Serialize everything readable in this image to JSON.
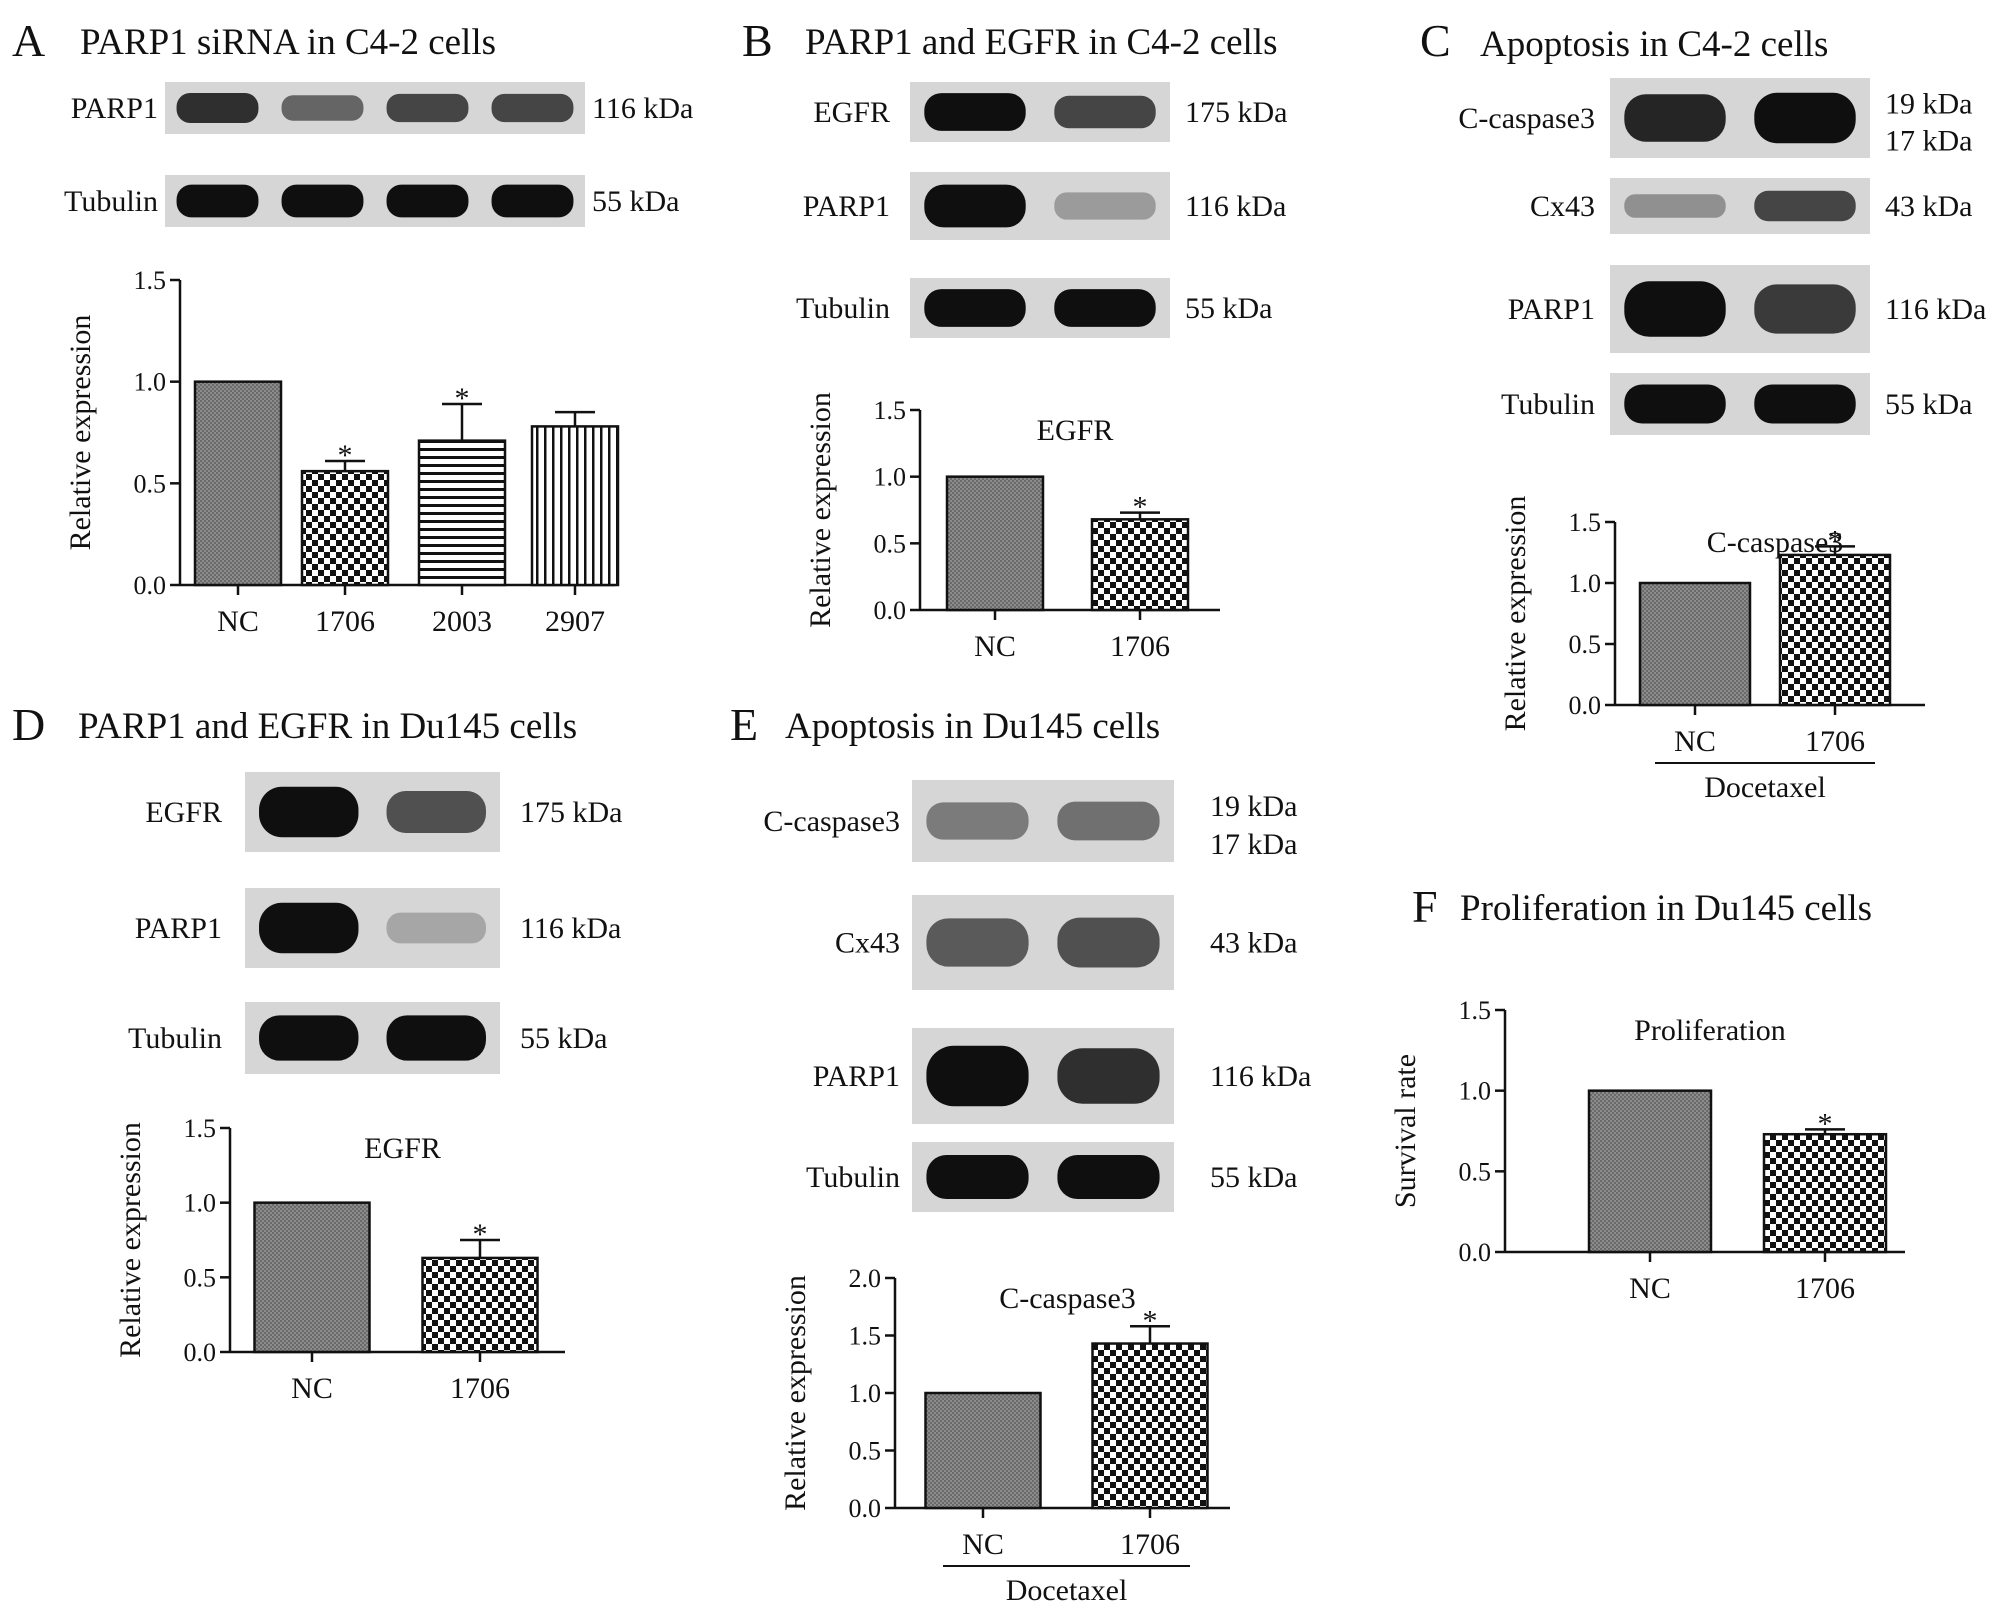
{
  "panels": {
    "A": {
      "letter": "A",
      "title": "PARP1 siRNA in C4-2 cells",
      "blots": [
        {
          "label": "PARP1",
          "size": "116 kDa",
          "lanes": 4,
          "intensity": [
            0.85,
            0.6,
            0.75,
            0.75
          ]
        },
        {
          "label": "Tubulin",
          "size": "55 kDa",
          "lanes": 4,
          "intensity": [
            1,
            1,
            1,
            1
          ]
        }
      ]
    },
    "B": {
      "letter": "B",
      "title": "PARP1 and EGFR  in  C4-2 cells",
      "blots": [
        {
          "label": "EGFR",
          "size": "175 kDa",
          "lanes": 2,
          "intensity": [
            1,
            0.75
          ]
        },
        {
          "label": "PARP1",
          "size": "116 kDa",
          "lanes": 2,
          "intensity": [
            1,
            0.35
          ]
        },
        {
          "label": "Tubulin",
          "size": "55 kDa",
          "lanes": 2,
          "intensity": [
            1,
            1
          ]
        }
      ]
    },
    "C": {
      "letter": "C",
      "title": "Apoptosis in C4-2 cells",
      "blots": [
        {
          "label": "C-caspase3",
          "size": "19 kDa",
          "size2": "17 kDa",
          "lanes": 2,
          "intensity": [
            0.9,
            1
          ]
        },
        {
          "label": "Cx43",
          "size": "43 kDa",
          "lanes": 2,
          "intensity": [
            0.4,
            0.75
          ]
        },
        {
          "label": "PARP1",
          "size": "116 kDa",
          "lanes": 2,
          "intensity": [
            1,
            0.8
          ]
        },
        {
          "label": "Tubulin",
          "size": "55 kDa",
          "lanes": 2,
          "intensity": [
            1,
            1
          ]
        }
      ]
    },
    "D": {
      "letter": "D",
      "title": "PARP1 and EGFR in Du145 cells",
      "blots": [
        {
          "label": "EGFR",
          "size": "175 kDa",
          "lanes": 2,
          "intensity": [
            1,
            0.7
          ]
        },
        {
          "label": "PARP1",
          "size": "116 kDa",
          "lanes": 2,
          "intensity": [
            1,
            0.3
          ]
        },
        {
          "label": "Tubulin",
          "size": "55 kDa",
          "lanes": 2,
          "intensity": [
            1,
            1
          ]
        }
      ]
    },
    "E": {
      "letter": "E",
      "title": "Apoptosis in Du145 cells",
      "blots": [
        {
          "label": "C-caspase3",
          "size": "19 kDa",
          "size2": "17 kDa",
          "lanes": 2,
          "intensity": [
            0.5,
            0.55
          ]
        },
        {
          "label": "Cx43",
          "size": "43 kDa",
          "lanes": 2,
          "intensity": [
            0.65,
            0.7
          ]
        },
        {
          "label": "PARP1",
          "size": "116 kDa",
          "lanes": 2,
          "intensity": [
            1,
            0.85
          ]
        },
        {
          "label": "Tubulin",
          "size": "55 kDa",
          "lanes": 2,
          "intensity": [
            1,
            1
          ]
        }
      ]
    },
    "F": {
      "letter": "F",
      "title": "Proliferation in Du145 cells",
      "blots": []
    }
  },
  "chart_data": [
    {
      "panel": "A",
      "type": "bar",
      "title": "",
      "ylabel": "Relative expression",
      "xlabel": "",
      "categories": [
        "NC",
        "1706",
        "2003",
        "2907"
      ],
      "values": [
        1.0,
        0.56,
        0.71,
        0.78
      ],
      "errors": [
        0,
        0.05,
        0.18,
        0.07
      ],
      "significance": [
        "",
        "*",
        "*",
        ""
      ],
      "patterns": [
        "fine",
        "checker",
        "hstripe",
        "vstripe"
      ],
      "ylim": [
        0,
        1.5
      ],
      "yticks": [
        "0.0",
        "0.5",
        "1.0",
        "1.5"
      ],
      "grid": false,
      "group_label": ""
    },
    {
      "panel": "B",
      "type": "bar",
      "title": "EGFR",
      "ylabel": "Relative expression",
      "xlabel": "",
      "categories": [
        "NC",
        "1706"
      ],
      "values": [
        1.0,
        0.68
      ],
      "errors": [
        0,
        0.05
      ],
      "significance": [
        "",
        "*"
      ],
      "patterns": [
        "fine",
        "checker"
      ],
      "ylim": [
        0,
        1.5
      ],
      "yticks": [
        "0.0",
        "0.5",
        "1.0",
        "1.5"
      ],
      "grid": false,
      "group_label": ""
    },
    {
      "panel": "C",
      "type": "bar",
      "title": "C-caspase3",
      "ylabel": "Relative expression",
      "xlabel": "",
      "categories": [
        "NC",
        "1706"
      ],
      "values": [
        1.0,
        1.23
      ],
      "errors": [
        0,
        0.07
      ],
      "significance": [
        "",
        "*"
      ],
      "patterns": [
        "fine",
        "checker"
      ],
      "ylim": [
        0,
        1.5
      ],
      "yticks": [
        "0.0",
        "0.5",
        "1.0",
        "1.5"
      ],
      "grid": false,
      "group_label": "Docetaxel"
    },
    {
      "panel": "D",
      "type": "bar",
      "title": "EGFR",
      "ylabel": "Relative expression",
      "xlabel": "",
      "categories": [
        "NC",
        "1706"
      ],
      "values": [
        1.0,
        0.63
      ],
      "errors": [
        0,
        0.12
      ],
      "significance": [
        "",
        "*"
      ],
      "patterns": [
        "fine",
        "checker"
      ],
      "ylim": [
        0,
        1.5
      ],
      "yticks": [
        "0.0",
        "0.5",
        "1.0",
        "1.5"
      ],
      "grid": false,
      "group_label": ""
    },
    {
      "panel": "E",
      "type": "bar",
      "title": "C-caspase3",
      "ylabel": "Relative expression",
      "xlabel": "",
      "categories": [
        "NC",
        "1706"
      ],
      "values": [
        1.0,
        1.43
      ],
      "errors": [
        0,
        0.15
      ],
      "significance": [
        "",
        "*"
      ],
      "patterns": [
        "fine",
        "checker"
      ],
      "ylim": [
        0,
        2.0
      ],
      "yticks": [
        "0.0",
        "0.5",
        "1.0",
        "1.5",
        "2.0"
      ],
      "grid": false,
      "group_label": "Docetaxel"
    },
    {
      "panel": "F",
      "type": "bar",
      "title": "Proliferation",
      "ylabel": "Survival rate",
      "xlabel": "",
      "categories": [
        "NC",
        "1706"
      ],
      "values": [
        1.0,
        0.73
      ],
      "errors": [
        0,
        0.03
      ],
      "significance": [
        "",
        "*"
      ],
      "patterns": [
        "fine",
        "checker"
      ],
      "ylim": [
        0,
        1.5
      ],
      "yticks": [
        "0.0",
        "0.5",
        "1.0",
        "1.5"
      ],
      "grid": false,
      "group_label": ""
    }
  ]
}
